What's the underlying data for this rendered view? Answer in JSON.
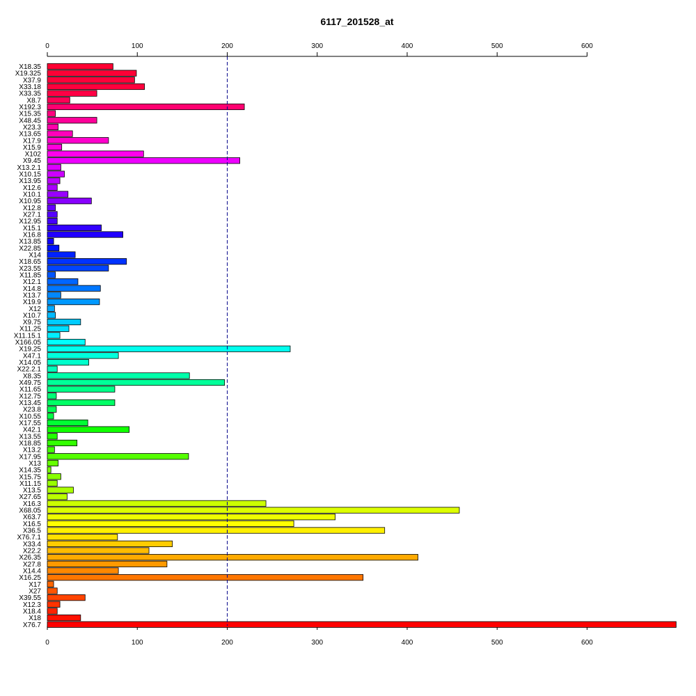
{
  "chart_data": {
    "type": "bar",
    "orientation": "horizontal",
    "title": "6117_201528_at",
    "xlabel": "",
    "ylabel": "",
    "xlim": [
      0,
      700
    ],
    "x_ticks": [
      0,
      100,
      200,
      300,
      400,
      500,
      600
    ],
    "reference_line": 200,
    "grid": false,
    "categories": [
      "X18.35",
      "X19.325",
      "X37.9",
      "X33.18",
      "X33.35",
      "X8.7",
      "X192.3",
      "X15.35",
      "X48.45",
      "X23.3",
      "X13.65",
      "X17.9",
      "X15.9",
      "X102",
      "X9.45",
      "X13.2.1",
      "X10.15",
      "X13.95",
      "X12.6",
      "X10.1",
      "X10.95",
      "X12.8",
      "X27.1",
      "X12.95",
      "X15.1",
      "X16.8",
      "X13.85",
      "X22.85",
      "X14",
      "X18.65",
      "X23.55",
      "X11.85",
      "X12.1",
      "X14.8",
      "X13.7",
      "X19.9",
      "X12",
      "X10.7",
      "X9.75",
      "X11.25",
      "X11.15.1",
      "X166.05",
      "X19.25",
      "X47.1",
      "X14.05",
      "X22.2.1",
      "X8.35",
      "X49.75",
      "X11.65",
      "X12.75",
      "X13.45",
      "X23.8",
      "X10.55",
      "X17.55",
      "X42.1",
      "X13.55",
      "X18.85",
      "X13.2",
      "X17.95",
      "X13",
      "X14.35",
      "X15.75",
      "X11.15",
      "X13.5",
      "X27.65",
      "X16.3",
      "X68.05",
      "X63.7",
      "X16.5",
      "X36.5",
      "X76.7.1",
      "X33.4",
      "X22.2",
      "X26.35",
      "X27.8",
      "X14.4",
      "X16.25",
      "X17",
      "X27",
      "X39.55",
      "X12.3",
      "X18.4",
      "X18",
      "X76.7"
    ],
    "values": [
      73,
      99,
      97,
      108,
      55,
      25,
      219,
      9,
      55,
      12,
      28,
      68,
      16,
      107,
      214,
      15,
      19,
      14,
      11,
      23,
      49,
      9,
      11,
      11,
      60,
      84,
      7,
      13,
      31,
      88,
      68,
      9,
      34,
      59,
      15,
      58,
      8,
      9,
      37,
      24,
      14,
      42,
      270,
      79,
      46,
      11,
      158,
      197,
      75,
      10,
      75,
      10,
      7,
      45,
      91,
      11,
      33,
      8,
      157,
      12,
      4,
      15,
      11,
      29,
      22,
      243,
      458,
      320,
      274,
      375,
      78,
      139,
      113,
      412,
      133,
      79,
      351,
      7,
      11,
      42,
      14,
      11,
      37,
      699
    ],
    "colors": [
      "#FF0033",
      "#FF0036",
      "#FF003A",
      "#FF003E",
      "#FF0045",
      "#FF0055",
      "#FF0070",
      "#FF0080",
      "#FF0099",
      "#FF00AA",
      "#FF00BB",
      "#FF00CC",
      "#FF00DD",
      "#FF00EE",
      "#EE00FF",
      "#DD00FF",
      "#CC00FF",
      "#BB00FF",
      "#AA00FF",
      "#9900FF",
      "#8800FF",
      "#6600FF",
      "#5500FF",
      "#4400FF",
      "#3300FF",
      "#2200FF",
      "#1100FF",
      "#0011FF",
      "#0022FF",
      "#0033FF",
      "#0044FF",
      "#0055FF",
      "#0066FF",
      "#0077FF",
      "#0088FF",
      "#0099FF",
      "#00AAFF",
      "#00BBFF",
      "#00CCFF",
      "#00DDFF",
      "#00EEFF",
      "#00FFFF",
      "#00FFEE",
      "#00FFDD",
      "#00FFCC",
      "#00FFBB",
      "#00FFAA",
      "#00FF99",
      "#00FF88",
      "#00FF77",
      "#00FF66",
      "#00FF55",
      "#00FF44",
      "#00FF33",
      "#11FF00",
      "#22FF00",
      "#33FF00",
      "#44FF00",
      "#55FF00",
      "#66FF00",
      "#77FF00",
      "#88FF00",
      "#99FF00",
      "#AAFF00",
      "#BBFF00",
      "#CCFF00",
      "#DDFF00",
      "#EEFF00",
      "#FFFF00",
      "#FFF000",
      "#FFE000",
      "#FFCC00",
      "#FFBB00",
      "#FFAA00",
      "#FF9900",
      "#FF8800",
      "#FF7700",
      "#FF6600",
      "#FF5500",
      "#FF4400",
      "#FF3300",
      "#FF2200",
      "#FF1100",
      "#FF0000"
    ]
  }
}
